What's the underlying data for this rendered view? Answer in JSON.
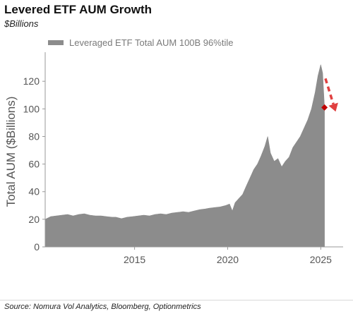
{
  "header": {
    "title": "Levered ETF AUM Growth",
    "subtitle": "$Billions"
  },
  "source": "Source: Nomura Vol Analytics, Bloomberg, Optionmetrics",
  "colors": {
    "area": "#8c8c8c",
    "marker": "#c00000",
    "arrow": "#e04040",
    "axis": "#999999",
    "text": "#555555"
  },
  "chart_data": {
    "type": "area",
    "ylabel": "Total AUM ($Billions)",
    "ylim": [
      0,
      138
    ],
    "xlim": [
      2010.2,
      2026.2
    ],
    "yticks": [
      0,
      20,
      40,
      60,
      80,
      100,
      120
    ],
    "xticks": [
      2015,
      2020,
      2025
    ],
    "legend_position": "top-left",
    "grid": false,
    "series": [
      {
        "name": "Leveraged ETF Total AUM 100B 96%tile",
        "points": [
          [
            2010.2,
            20
          ],
          [
            2010.5,
            22
          ],
          [
            2010.8,
            22.5
          ],
          [
            2011.1,
            23
          ],
          [
            2011.4,
            23.5
          ],
          [
            2011.7,
            22.5
          ],
          [
            2012.0,
            23.5
          ],
          [
            2012.3,
            24
          ],
          [
            2012.6,
            23
          ],
          [
            2012.9,
            22.5
          ],
          [
            2013.2,
            22.5
          ],
          [
            2013.5,
            22
          ],
          [
            2013.8,
            21.5
          ],
          [
            2014.0,
            21.5
          ],
          [
            2014.3,
            20.5
          ],
          [
            2014.6,
            21.5
          ],
          [
            2014.9,
            22
          ],
          [
            2015.2,
            22.5
          ],
          [
            2015.5,
            23
          ],
          [
            2015.8,
            22.5
          ],
          [
            2016.1,
            23.5
          ],
          [
            2016.4,
            24
          ],
          [
            2016.7,
            23.5
          ],
          [
            2017.0,
            24.5
          ],
          [
            2017.3,
            25
          ],
          [
            2017.6,
            25.5
          ],
          [
            2017.9,
            25
          ],
          [
            2018.2,
            26
          ],
          [
            2018.5,
            27
          ],
          [
            2018.8,
            27.5
          ],
          [
            2019.0,
            28
          ],
          [
            2019.3,
            28.5
          ],
          [
            2019.6,
            29
          ],
          [
            2019.9,
            30
          ],
          [
            2020.1,
            31
          ],
          [
            2020.25,
            26
          ],
          [
            2020.4,
            32
          ],
          [
            2020.6,
            35
          ],
          [
            2020.8,
            38
          ],
          [
            2021.0,
            44
          ],
          [
            2021.2,
            50
          ],
          [
            2021.4,
            56
          ],
          [
            2021.6,
            60
          ],
          [
            2021.8,
            66
          ],
          [
            2022.0,
            73
          ],
          [
            2022.15,
            80
          ],
          [
            2022.3,
            68
          ],
          [
            2022.5,
            62
          ],
          [
            2022.7,
            64
          ],
          [
            2022.9,
            58
          ],
          [
            2023.1,
            62
          ],
          [
            2023.3,
            65
          ],
          [
            2023.5,
            72
          ],
          [
            2023.7,
            76
          ],
          [
            2023.9,
            80
          ],
          [
            2024.1,
            86
          ],
          [
            2024.3,
            92
          ],
          [
            2024.5,
            100
          ],
          [
            2024.7,
            112
          ],
          [
            2024.85,
            124
          ],
          [
            2025.0,
            132
          ],
          [
            2025.1,
            126
          ],
          [
            2025.2,
            101
          ]
        ]
      }
    ],
    "marker": {
      "x": 2025.2,
      "y": 101
    },
    "trend_arrow": {
      "from": [
        2025.25,
        122
      ],
      "to": [
        2025.8,
        98
      ]
    }
  }
}
